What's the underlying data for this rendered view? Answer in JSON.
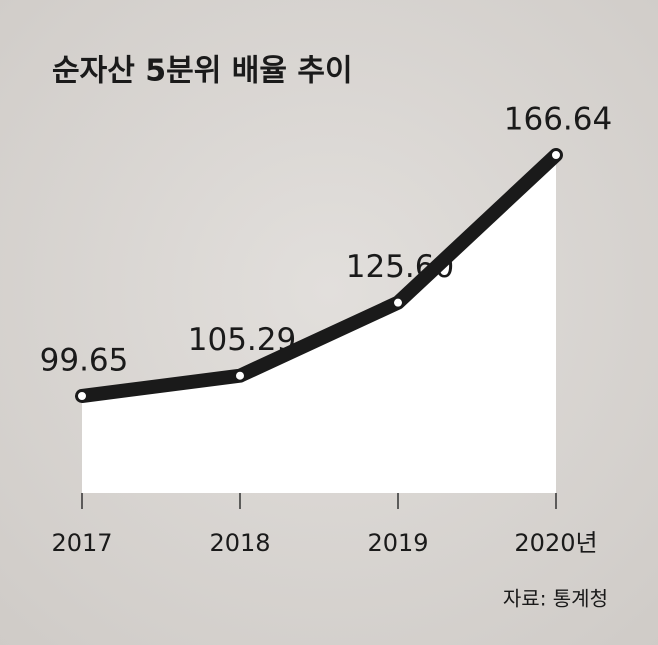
{
  "chart_data": {
    "type": "line",
    "title": "순자산 5분위 배율 추이",
    "source": "자료: 통계청",
    "categories": [
      "2017",
      "2018",
      "2019",
      "2020년"
    ],
    "values": [
      99.65,
      105.29,
      125.6,
      166.64
    ],
    "value_labels": [
      "99.65",
      "105.29",
      "125.60",
      "166.64"
    ],
    "color": "#1a1a1a",
    "fill": "#ffffff"
  }
}
